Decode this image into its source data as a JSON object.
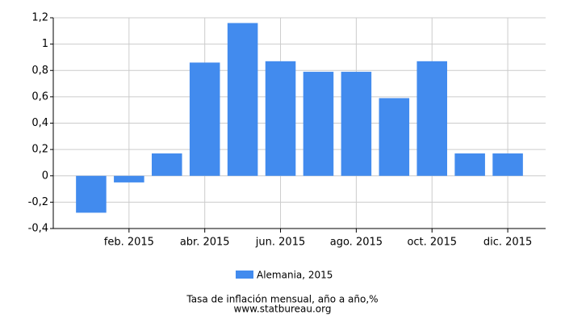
{
  "chart_data": {
    "type": "bar",
    "title": "Tasa de inflación mensual, año a año,%",
    "source": "www.statbureau.org",
    "categories": [
      null,
      "feb. 2015",
      null,
      "abr. 2015",
      null,
      "jun. 2015",
      null,
      "ago. 2015",
      null,
      "oct. 2015",
      null,
      "dic. 2015"
    ],
    "series": [
      {
        "name": "Alemania, 2015",
        "color": "#428bee",
        "values": [
          -0.28,
          -0.05,
          0.17,
          0.86,
          1.16,
          0.87,
          0.79,
          0.79,
          0.59,
          0.87,
          0.17,
          0.17
        ]
      }
    ],
    "ylim": [
      -0.4,
      1.2
    ],
    "yticks": [
      {
        "value": -0.4,
        "label": "-0,4"
      },
      {
        "value": -0.2,
        "label": "-0,2"
      },
      0,
      {
        "value": 0.2,
        "label": "0,2"
      },
      {
        "value": 0.4,
        "label": "0,4"
      },
      {
        "value": 0.6,
        "label": "0,6"
      },
      {
        "value": 0.8,
        "label": "0,8"
      },
      1,
      {
        "value": 1.2,
        "label": "1,2"
      }
    ],
    "grid": true
  }
}
